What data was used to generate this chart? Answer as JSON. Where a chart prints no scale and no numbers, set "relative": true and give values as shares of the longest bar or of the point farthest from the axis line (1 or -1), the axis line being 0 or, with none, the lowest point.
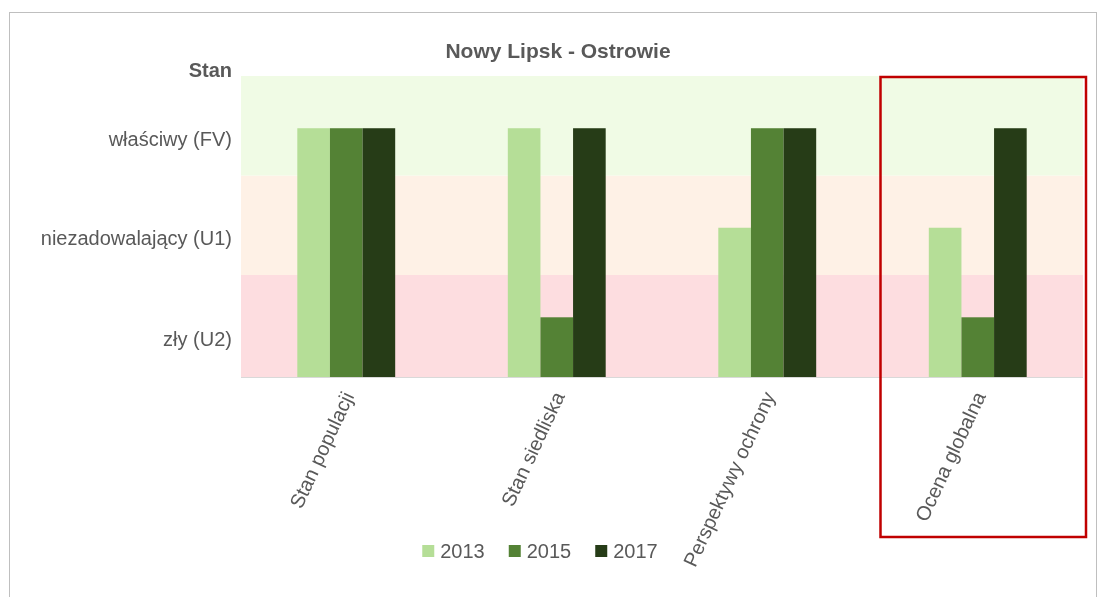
{
  "chart_data": {
    "type": "bar",
    "title": "Nowy Lipsk - Ostrowie",
    "ylabel": "Stan",
    "relative": true,
    "categories": [
      "Stan populacji",
      "Stan siedliska",
      "Perspektywy ochrony",
      "Ocena globalna"
    ],
    "series": [
      {
        "name": "2013",
        "color": "#b5de97",
        "values": [
          1,
          1,
          0.6,
          0.6
        ]
      },
      {
        "name": "2015",
        "color": "#548235",
        "values": [
          1,
          0.24,
          1,
          0.24
        ]
      },
      {
        "name": "2017",
        "color": "#263c17",
        "values": [
          1,
          1,
          1,
          1
        ]
      }
    ],
    "bands": [
      {
        "axis": "y",
        "from": 0,
        "to": 0.41,
        "label": "zły (U2)",
        "color": "#fddde0"
      },
      {
        "axis": "y",
        "from": 0.41,
        "to": 0.81,
        "label": "niezadowalający (U1)",
        "color": "#fef1e6"
      },
      {
        "axis": "y",
        "from": 0.81,
        "to": 1.21,
        "label": "właściwy (FV)",
        "color": "#f0fbe5"
      }
    ],
    "legend": "bottom"
  }
}
